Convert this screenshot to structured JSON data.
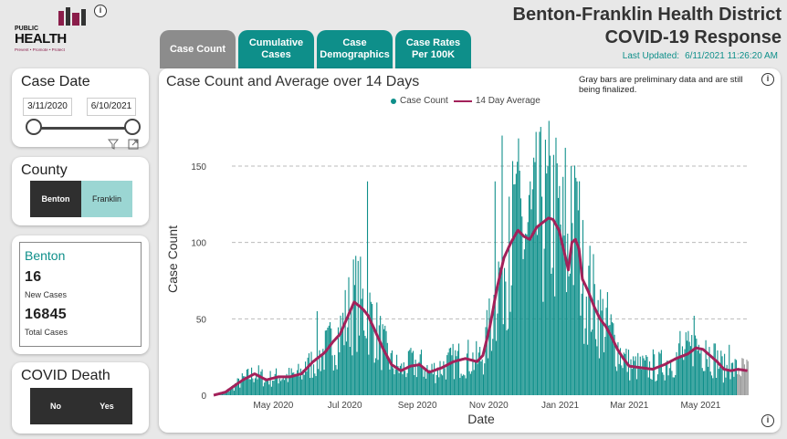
{
  "logo": {
    "line1": "PUBLIC",
    "line2": "HEALTH",
    "tagline": "Prevent • Promote • Protect"
  },
  "header": {
    "title_line1": "Benton-Franklin Health District",
    "title_line2": "COVID-19 Response",
    "updated_label": "Last Updated:",
    "updated_value": "6/11/2021 11:26:20 AM"
  },
  "tabs": [
    {
      "label": "Case Count",
      "active": true
    },
    {
      "label": "Cumulative\nCases",
      "active": false
    },
    {
      "label": "Case\nDemographics",
      "active": false
    },
    {
      "label": "Case Rates\nPer 100K",
      "active": false
    }
  ],
  "case_date": {
    "title": "Case Date",
    "start": "3/11/2020",
    "end": "6/10/2021"
  },
  "county": {
    "title": "County",
    "options": [
      "Benton",
      "Franklin"
    ],
    "selected": "Benton"
  },
  "stats": {
    "county": "Benton",
    "new_cases": "16",
    "new_label": "New Cases",
    "total_cases": "16845",
    "total_label": "Total Cases"
  },
  "death": {
    "title": "COVID Death",
    "options": [
      "No",
      "Yes"
    ]
  },
  "icons": {
    "info": "info-icon",
    "filter": "filter-icon",
    "expand": "expand-icon"
  },
  "colors": {
    "accent": "#0e8f8a",
    "line": "#a3215a",
    "prelim": "#999999"
  },
  "chart_data": {
    "type": "bar",
    "title": "Case Count and Average over 14 Days",
    "note": "Gray bars are preliminary data and are still being finalized.",
    "legend": [
      "Case Count",
      "14 Day Average"
    ],
    "xlabel": "Date",
    "ylabel": "Case Count",
    "ylim": [
      0,
      175
    ],
    "yticks": [
      0,
      50,
      100,
      150
    ],
    "xtick_labels": [
      "May 2020",
      "Jul 2020",
      "Sep 2020",
      "Nov 2020",
      "Jan 2021",
      "Mar 2021",
      "May 2021"
    ],
    "xtick_days": [
      51,
      112,
      174,
      235,
      296,
      355,
      416
    ],
    "days": 457,
    "preliminary_last_days": 10,
    "avg_knots": [
      [
        0,
        0
      ],
      [
        10,
        2
      ],
      [
        25,
        10
      ],
      [
        35,
        14
      ],
      [
        45,
        10
      ],
      [
        55,
        12
      ],
      [
        65,
        12
      ],
      [
        75,
        14
      ],
      [
        85,
        22
      ],
      [
        95,
        28
      ],
      [
        102,
        35
      ],
      [
        108,
        40
      ],
      [
        112,
        47
      ],
      [
        116,
        54
      ],
      [
        120,
        61
      ],
      [
        125,
        58
      ],
      [
        128,
        56
      ],
      [
        132,
        52
      ],
      [
        138,
        42
      ],
      [
        145,
        30
      ],
      [
        152,
        20
      ],
      [
        160,
        16
      ],
      [
        168,
        19
      ],
      [
        176,
        20
      ],
      [
        184,
        15
      ],
      [
        195,
        18
      ],
      [
        205,
        22
      ],
      [
        215,
        24
      ],
      [
        225,
        22
      ],
      [
        230,
        26
      ],
      [
        236,
        45
      ],
      [
        242,
        70
      ],
      [
        248,
        90
      ],
      [
        254,
        100
      ],
      [
        260,
        108
      ],
      [
        265,
        104
      ],
      [
        270,
        102
      ],
      [
        276,
        110
      ],
      [
        281,
        113
      ],
      [
        286,
        116
      ],
      [
        290,
        115
      ],
      [
        295,
        108
      ],
      [
        300,
        92
      ],
      [
        303,
        82
      ],
      [
        306,
        100
      ],
      [
        309,
        102
      ],
      [
        312,
        96
      ],
      [
        315,
        76
      ],
      [
        320,
        68
      ],
      [
        325,
        58
      ],
      [
        330,
        50
      ],
      [
        335,
        45
      ],
      [
        340,
        38
      ],
      [
        345,
        30
      ],
      [
        350,
        24
      ],
      [
        355,
        19
      ],
      [
        365,
        18
      ],
      [
        375,
        17
      ],
      [
        385,
        20
      ],
      [
        395,
        24
      ],
      [
        405,
        27
      ],
      [
        412,
        31
      ],
      [
        418,
        30
      ],
      [
        424,
        26
      ],
      [
        430,
        22
      ],
      [
        436,
        17
      ],
      [
        442,
        16
      ],
      [
        448,
        17
      ],
      [
        456,
        16
      ]
    ],
    "spikes": [
      [
        78,
        22
      ],
      [
        88,
        55
      ],
      [
        131,
        140
      ],
      [
        168,
        31
      ],
      [
        240,
        140
      ],
      [
        246,
        170
      ],
      [
        252,
        130
      ],
      [
        258,
        145
      ],
      [
        270,
        140
      ],
      [
        280,
        130
      ],
      [
        300,
        162
      ],
      [
        305,
        150
      ],
      [
        310,
        140
      ],
      [
        375,
        30
      ],
      [
        398,
        42
      ],
      [
        410,
        52
      ],
      [
        420,
        36
      ],
      [
        440,
        33
      ]
    ]
  }
}
